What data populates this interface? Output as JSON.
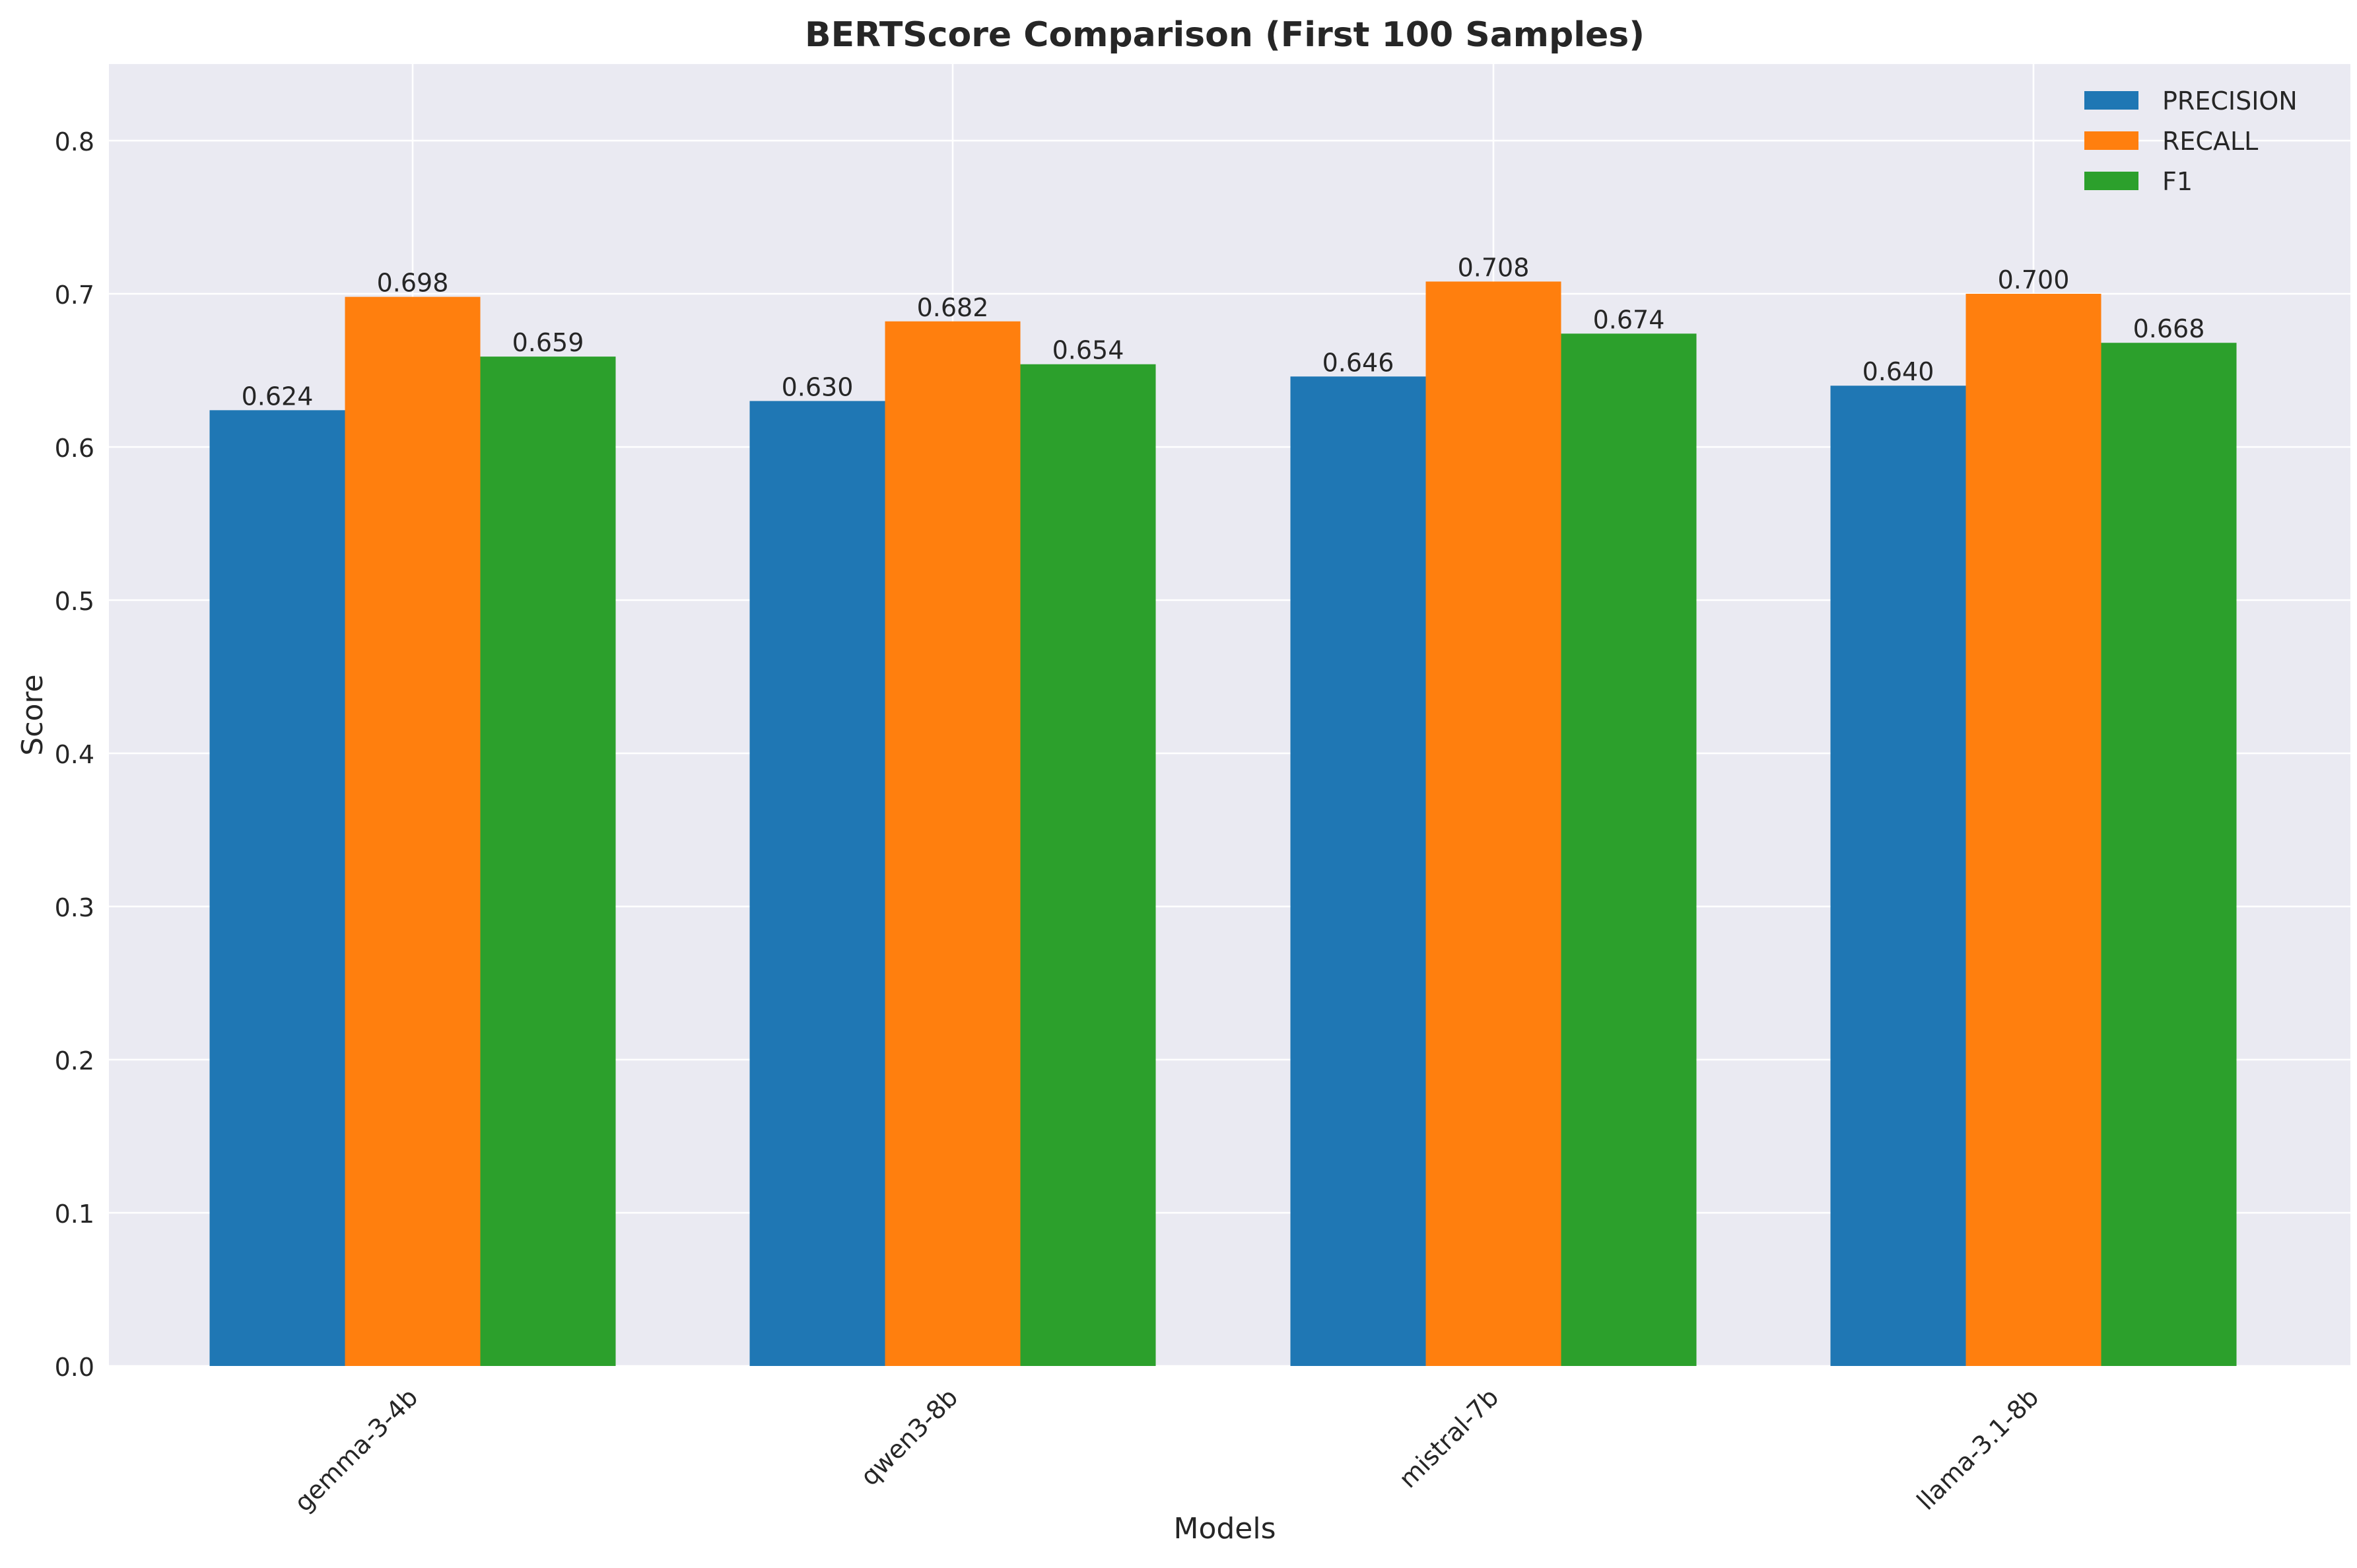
{
  "chart_data": {
    "type": "bar",
    "title": "BERTScore Comparison (First 100 Samples)",
    "xlabel": "Models",
    "ylabel": "Score",
    "categories": [
      "gemma-3-4b",
      "qwen3-8b",
      "mistral-7b",
      "llama-3.1-8b"
    ],
    "series": [
      {
        "name": "PRECISION",
        "color": "#1f77b4",
        "values": [
          0.624,
          0.63,
          0.646,
          0.64
        ]
      },
      {
        "name": "RECALL",
        "color": "#ff7f0e",
        "values": [
          0.698,
          0.682,
          0.708,
          0.7
        ]
      },
      {
        "name": "F1",
        "color": "#2ca02c",
        "values": [
          0.659,
          0.654,
          0.674,
          0.668
        ]
      }
    ],
    "data_labels": [
      [
        "0.624",
        "0.630",
        "0.646",
        "0.640"
      ],
      [
        "0.698",
        "0.682",
        "0.708",
        "0.700"
      ],
      [
        "0.659",
        "0.654",
        "0.674",
        "0.668"
      ]
    ],
    "ylim": [
      0,
      0.85
    ],
    "yticks": [
      "0.0",
      "0.1",
      "0.2",
      "0.3",
      "0.4",
      "0.5",
      "0.6",
      "0.7",
      "0.8"
    ],
    "grid": true,
    "legend_position": "top-right",
    "plot_background": "#eaeaf2",
    "grid_color": "#ffffff"
  }
}
